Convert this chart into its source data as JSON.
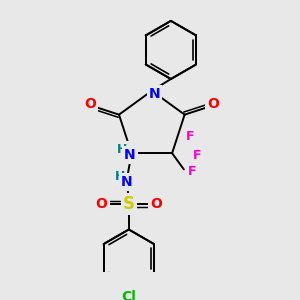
{
  "bg_color": "#e8e8e8",
  "line_color": "#000000",
  "figsize": [
    3.0,
    3.0
  ],
  "dpi": 100,
  "colors": {
    "N": "#0000ff",
    "O": "#ff0000",
    "F": "#ff00cc",
    "S": "#cccc00",
    "NH": "#008080",
    "Cl": "#00bb00"
  }
}
